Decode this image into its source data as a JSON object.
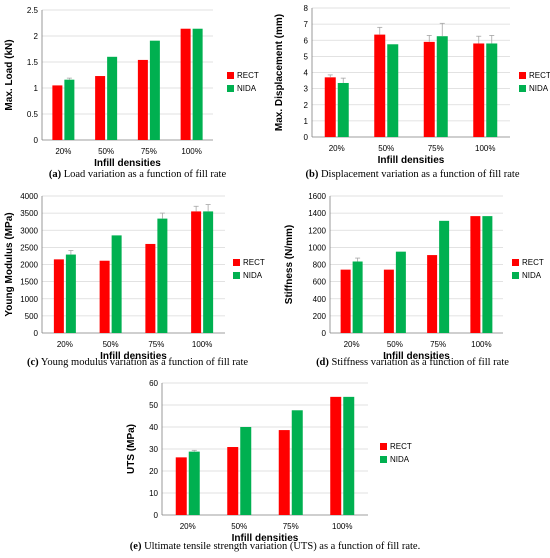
{
  "colors": {
    "RECT": "#ff0000",
    "NIDA": "#00b050",
    "grid": "#d9d9d9",
    "axis": "#7f7f7f"
  },
  "chart_data": [
    {
      "id": "a",
      "type": "bar",
      "categories": [
        "20%",
        "50%",
        "75%",
        "100%"
      ],
      "series": [
        {
          "name": "RECT",
          "values": [
            1.05,
            1.23,
            1.54,
            2.14
          ],
          "errors": [
            0.0,
            0.0,
            0.0,
            0.0
          ]
        },
        {
          "name": "NIDA",
          "values": [
            1.16,
            1.6,
            1.91,
            2.14
          ],
          "errors": [
            0.03,
            0.0,
            0.0,
            0.0
          ]
        }
      ],
      "xlabel": "Infill densities",
      "ylabel": "Max. Load (kN)",
      "ylim": [
        0,
        2.5
      ],
      "yticks": [
        "0",
        "0.5",
        "1",
        "1.5",
        "2",
        "2.5"
      ],
      "grid": true,
      "legend": "right",
      "caption_label": "(a)",
      "caption_text": "Load variation as a function of fill rate"
    },
    {
      "id": "b",
      "type": "bar",
      "categories": [
        "20%",
        "50%",
        "75%",
        "100%"
      ],
      "series": [
        {
          "name": "RECT",
          "values": [
            3.7,
            6.35,
            5.9,
            5.8
          ],
          "errors": [
            0.15,
            0.45,
            0.4,
            0.45
          ]
        },
        {
          "name": "NIDA",
          "values": [
            3.35,
            5.75,
            6.25,
            5.8
          ],
          "errors": [
            0.3,
            0.0,
            0.8,
            0.5
          ]
        }
      ],
      "xlabel": "Infill densities",
      "ylabel": "Max. Displacement (mm)",
      "ylim": [
        0,
        8
      ],
      "yticks": [
        "0",
        "1",
        "2",
        "3",
        "4",
        "5",
        "6",
        "7",
        "8"
      ],
      "grid": true,
      "legend": "right",
      "caption_label": "(b)",
      "caption_text": "Displacement variation as a function of fill rate"
    },
    {
      "id": "c",
      "type": "bar",
      "categories": [
        "20%",
        "50%",
        "75%",
        "100%"
      ],
      "series": [
        {
          "name": "RECT",
          "values": [
            2150,
            2110,
            2600,
            3550
          ],
          "errors": [
            0,
            0,
            0,
            150
          ]
        },
        {
          "name": "NIDA",
          "values": [
            2290,
            2850,
            3340,
            3550
          ],
          "errors": [
            120,
            0,
            160,
            200
          ]
        }
      ],
      "xlabel": "Infill densities",
      "ylabel": "Young Modulus (MPa)",
      "ylim": [
        0,
        4000
      ],
      "yticks": [
        "0",
        "500",
        "1000",
        "1500",
        "2000",
        "2500",
        "3000",
        "3500",
        "4000"
      ],
      "grid": true,
      "legend": "right",
      "caption_label": "(c)",
      "caption_text": "Young modulus variation as a function of fill rate"
    },
    {
      "id": "d",
      "type": "bar",
      "categories": [
        "20%",
        "50%",
        "75%",
        "100%"
      ],
      "series": [
        {
          "name": "RECT",
          "values": [
            740,
            740,
            910,
            1365
          ],
          "errors": [
            0,
            0,
            0,
            0
          ]
        },
        {
          "name": "NIDA",
          "values": [
            835,
            950,
            1310,
            1365
          ],
          "errors": [
            40,
            0,
            0,
            0
          ]
        }
      ],
      "xlabel": "Infill densities",
      "ylabel": "Stiffness (N/mm)",
      "ylim": [
        0,
        1600
      ],
      "yticks": [
        "0",
        "200",
        "400",
        "600",
        "800",
        "1000",
        "1200",
        "1400",
        "1600"
      ],
      "grid": true,
      "legend": "right",
      "caption_label": "(d)",
      "caption_text": "Stiffness variation as a function of fill rate"
    },
    {
      "id": "e",
      "type": "bar",
      "categories": [
        "20%",
        "50%",
        "75%",
        "100%"
      ],
      "series": [
        {
          "name": "RECT",
          "values": [
            26.2,
            30.9,
            38.6,
            53.7
          ],
          "errors": [
            0,
            0,
            0,
            0
          ]
        },
        {
          "name": "NIDA",
          "values": [
            28.8,
            40.0,
            47.6,
            53.7
          ],
          "errors": [
            0.6,
            0,
            0,
            0
          ]
        }
      ],
      "xlabel": "Infill densities",
      "ylabel": "UTS (MPa)",
      "ylim": [
        0,
        60
      ],
      "yticks": [
        "0",
        "10",
        "20",
        "30",
        "40",
        "50",
        "60"
      ],
      "grid": true,
      "legend": "right",
      "caption_label": "(e)",
      "caption_text": "Ultimate tensile strength variation (UTS) as a function of fill rate."
    }
  ]
}
